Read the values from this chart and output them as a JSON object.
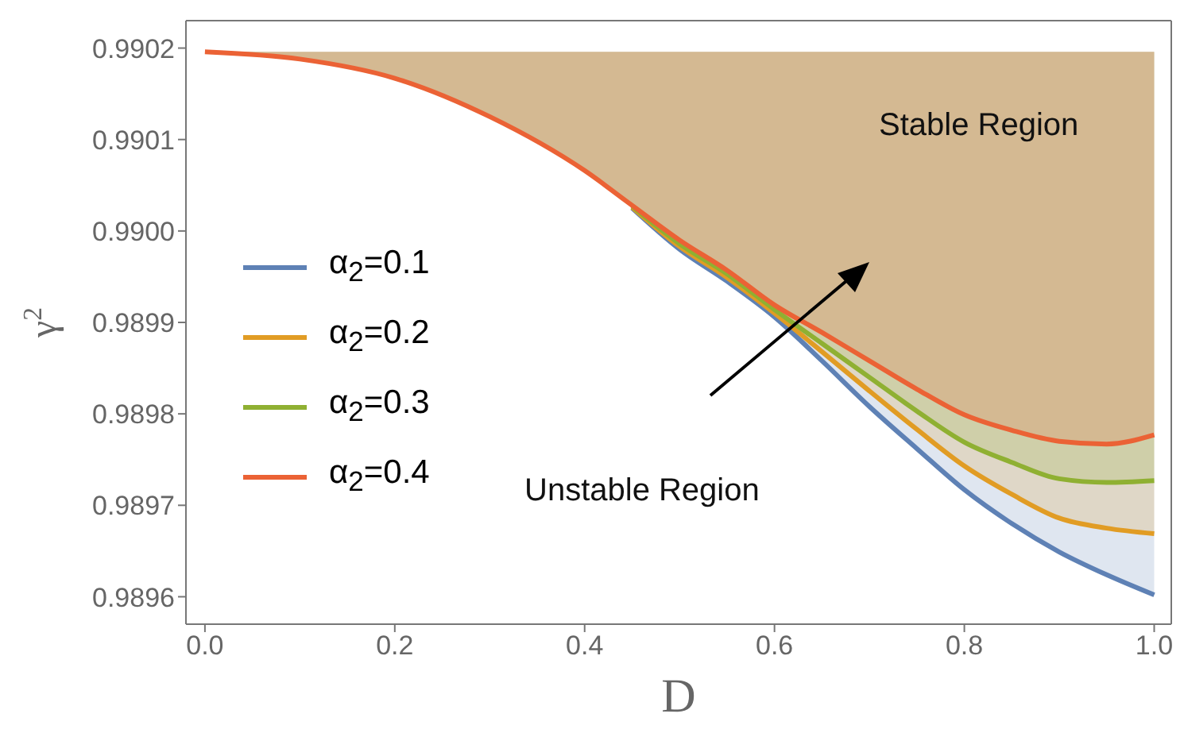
{
  "chart_data": {
    "type": "line",
    "xlabel": "D",
    "ylabel": "γ$^{2}$",
    "x": [
      0,
      0.1,
      0.2,
      0.3,
      0.4,
      0.45,
      0.5,
      0.55,
      0.6,
      0.65,
      0.7,
      0.75,
      0.8,
      0.85,
      0.9,
      0.95,
      1.0
    ],
    "series": [
      {
        "name": "α$_{2}$=0.1",
        "color": "#5e81b5",
        "values": [
          null,
          null,
          null,
          null,
          null,
          0.990025,
          0.98998,
          0.989945,
          0.989906,
          0.989858,
          0.989808,
          0.989762,
          0.989717,
          0.98968,
          0.989649,
          0.989624,
          0.989602
        ]
      },
      {
        "name": "α$_{2}$=0.2",
        "color": "#e19c24",
        "values": [
          null,
          null,
          null,
          null,
          null,
          0.990026,
          0.989983,
          0.989949,
          0.98991,
          0.989868,
          0.989825,
          0.989783,
          0.989743,
          0.989712,
          0.989686,
          0.989675,
          0.989669
        ]
      },
      {
        "name": "α$_{2}$=0.3",
        "color": "#8fb032",
        "values": [
          null,
          null,
          null,
          null,
          null,
          0.990027,
          0.989986,
          0.989953,
          0.989914,
          0.989877,
          0.98984,
          0.989803,
          0.989769,
          0.989747,
          0.989729,
          0.989725,
          0.989727
        ]
      },
      {
        "name": "α$_{2}$=0.4",
        "color": "#eb6235",
        "values": [
          0.990196,
          0.990188,
          0.990167,
          0.990125,
          0.990066,
          0.990028,
          0.98999,
          0.989957,
          0.989919,
          0.989889,
          0.989858,
          0.989827,
          0.989799,
          0.989782,
          0.98977,
          0.989767,
          0.989777
        ]
      }
    ],
    "xlim": [
      -0.02,
      1.018
    ],
    "xticks": [
      {
        "value": 0,
        "label": "0.0"
      },
      0.2,
      0.4,
      0.6,
      0.8,
      {
        "value": 1,
        "label": "1.0"
      }
    ],
    "ylim": [
      0.98957,
      0.99023
    ],
    "yticks": [
      0.9896,
      0.9897,
      0.9898,
      0.9899,
      {
        "value": 0.99,
        "label": "0.9900"
      },
      0.9901,
      0.9902
    ],
    "grid": false,
    "legend": "left",
    "marker": "none",
    "line_style": "solid",
    "annotations": [
      "Stable Region",
      "Unstable Region"
    ]
  }
}
